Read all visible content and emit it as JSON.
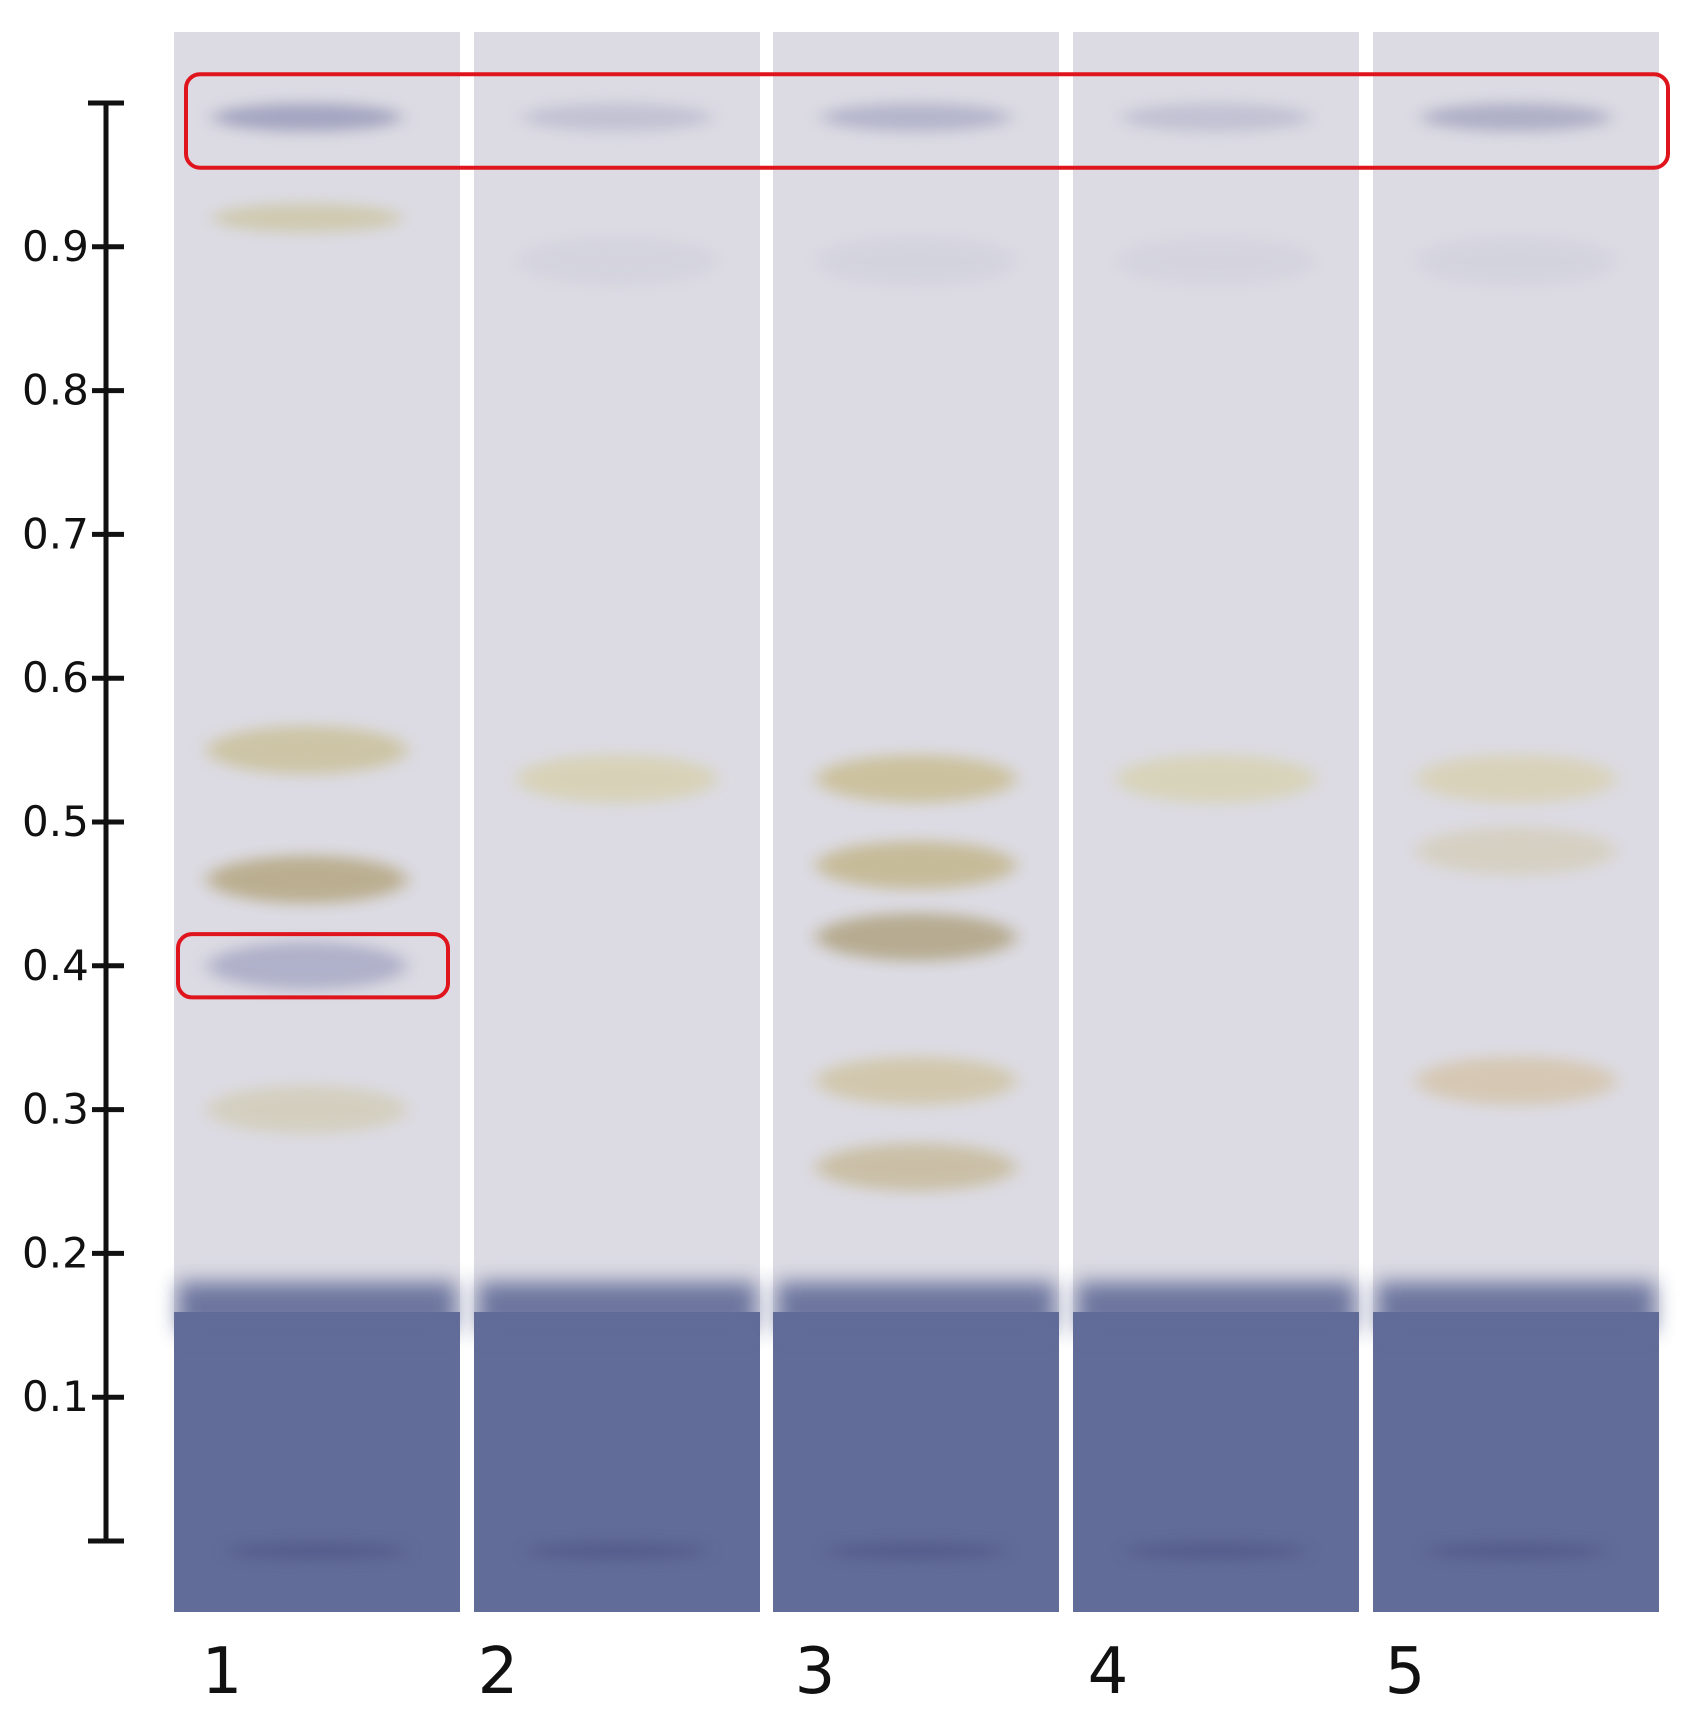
{
  "scale": {
    "ticks": [
      "0.9",
      "0.8",
      "0.7",
      "0.6",
      "0.5",
      "0.4",
      "0.3",
      "0.2",
      "0.1"
    ],
    "tick_values": [
      0.9,
      0.8,
      0.7,
      0.6,
      0.5,
      0.4,
      0.3,
      0.2,
      0.1
    ],
    "min": 0.0,
    "max": 1.0
  },
  "lanes": [
    {
      "label": "1",
      "bands": [
        {
          "rf": 0.99,
          "color": "#8c8fb2",
          "strength": 0.7
        },
        {
          "rf": 0.92,
          "color": "#c9c29a",
          "strength": 0.7
        },
        {
          "rf": 0.55,
          "color": "#c9bf96",
          "strength": 0.8
        },
        {
          "rf": 0.46,
          "color": "#b8aa88",
          "strength": 0.9
        },
        {
          "rf": 0.4,
          "color": "#9ea0c0",
          "strength": 0.7
        },
        {
          "rf": 0.3,
          "color": "#cfc7a8",
          "strength": 0.6
        }
      ]
    },
    {
      "label": "2",
      "bands": [
        {
          "rf": 0.99,
          "color": "#a7a9c4",
          "strength": 0.5
        },
        {
          "rf": 0.89,
          "color": "#c9c9d8",
          "strength": 0.4
        },
        {
          "rf": 0.53,
          "color": "#d6cfa5",
          "strength": 0.7
        }
      ]
    },
    {
      "label": "3",
      "bands": [
        {
          "rf": 0.99,
          "color": "#9a9cbc",
          "strength": 0.6
        },
        {
          "rf": 0.89,
          "color": "#c8c8d8",
          "strength": 0.4
        },
        {
          "rf": 0.53,
          "color": "#cabf98",
          "strength": 0.9
        },
        {
          "rf": 0.47,
          "color": "#c4b892",
          "strength": 0.9
        },
        {
          "rf": 0.42,
          "color": "#b3a789",
          "strength": 0.9
        },
        {
          "rf": 0.32,
          "color": "#cfc3a0",
          "strength": 0.8
        },
        {
          "rf": 0.26,
          "color": "#c6b998",
          "strength": 0.8
        }
      ]
    },
    {
      "label": "4",
      "bands": [
        {
          "rf": 0.99,
          "color": "#a6a8c3",
          "strength": 0.5
        },
        {
          "rf": 0.89,
          "color": "#cbcbd9",
          "strength": 0.4
        },
        {
          "rf": 0.53,
          "color": "#d6d0a9",
          "strength": 0.7
        }
      ]
    },
    {
      "label": "5",
      "bands": [
        {
          "rf": 0.99,
          "color": "#9093b4",
          "strength": 0.6
        },
        {
          "rf": 0.89,
          "color": "#c8c8d8",
          "strength": 0.4
        },
        {
          "rf": 0.53,
          "color": "#d7cfa9",
          "strength": 0.7
        },
        {
          "rf": 0.48,
          "color": "#d2c9ad",
          "strength": 0.6
        },
        {
          "rf": 0.32,
          "color": "#d4c3a8",
          "strength": 0.8
        }
      ]
    }
  ],
  "highlights": [
    {
      "name": "solvent-front-box",
      "lanes": [
        1,
        5
      ],
      "rf_top": 1.02,
      "rf_bottom": 0.955
    },
    {
      "name": "lane1-rf04-box",
      "lanes": [
        1,
        1
      ],
      "rf_top": 0.422,
      "rf_bottom": 0.378
    }
  ],
  "colors": {
    "plate_bg": "#dcdbe3",
    "plate_bottom": "#626c98",
    "highlight": "#e0141c",
    "scale": "#111111"
  }
}
